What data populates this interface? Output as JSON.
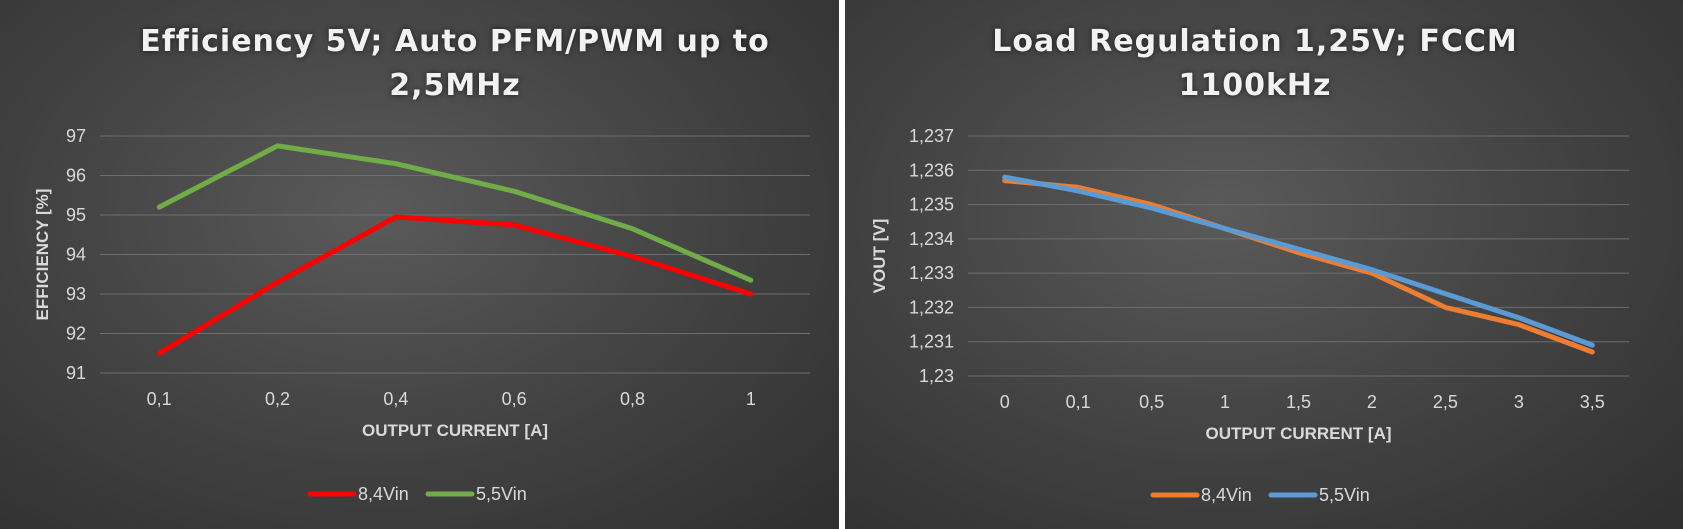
{
  "chart_data": [
    {
      "type": "line",
      "title": "Efficiency 5V; Auto PFM/PWM up to 2,5MHz",
      "xlabel": "OUTPUT CURRENT [A]",
      "ylabel": "EFFICIENCY [%]",
      "categories": [
        "0,1",
        "0,2",
        "0,4",
        "0,6",
        "0,8",
        "1"
      ],
      "ylim": [
        91,
        97
      ],
      "yticks": [
        "91",
        "92",
        "93",
        "94",
        "95",
        "96",
        "97"
      ],
      "grid": true,
      "legend_position": "bottom",
      "series": [
        {
          "name": "8,4Vin",
          "color": "#ff0000",
          "values": [
            91.5,
            93.3,
            94.95,
            94.75,
            93.95,
            93.0
          ]
        },
        {
          "name": "5,5Vin",
          "color": "#70ad47",
          "values": [
            95.2,
            96.75,
            96.3,
            95.6,
            94.65,
            93.35
          ]
        }
      ]
    },
    {
      "type": "line",
      "title": "Load Regulation 1,25V; FCCM 1100kHz",
      "xlabel": "OUTPUT CURRENT [A]",
      "ylabel": "VOUT [V]",
      "categories": [
        "0",
        "0,1",
        "0,5",
        "1",
        "1,5",
        "2",
        "2,5",
        "3",
        "3,5"
      ],
      "ylim": [
        1.23,
        1.237
      ],
      "yticks": [
        "1,23",
        "1,231",
        "1,232",
        "1,233",
        "1,234",
        "1,235",
        "1,236",
        "1,237"
      ],
      "grid": true,
      "legend_position": "bottom",
      "series": [
        {
          "name": "8,4Vin",
          "color": "#ed7d31",
          "values": [
            1.2357,
            1.2355,
            1.235,
            1.2343,
            1.2336,
            1.233,
            1.232,
            1.2315,
            1.2307
          ]
        },
        {
          "name": "5,5Vin",
          "color": "#5b9bd5",
          "values": [
            1.2358,
            1.2354,
            1.2349,
            1.2343,
            1.2337,
            1.2331,
            1.2324,
            1.2317,
            1.2309
          ]
        }
      ]
    }
  ]
}
